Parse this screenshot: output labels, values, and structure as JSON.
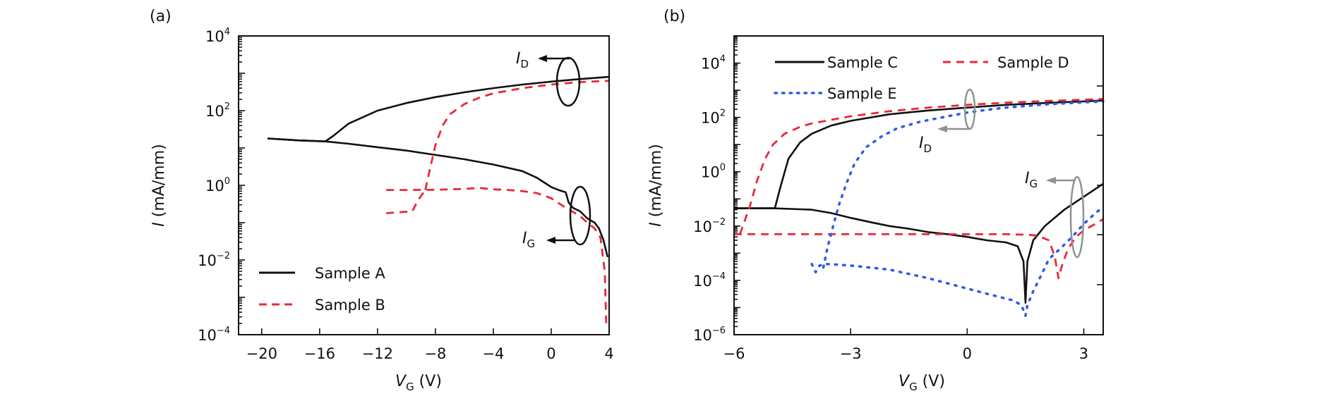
{
  "chart_data": [
    {
      "panel_label": "(a)",
      "type": "line",
      "title": "",
      "xlabel": "V_G (V)",
      "xlabel_main": "V",
      "xlabel_sub": "G",
      "xlabel_unit": " (V)",
      "ylabel": "I (mA/mm)",
      "ylabel_main": "I",
      "ylabel_unit": " (mA/mm)",
      "xlim": [
        -21.6,
        4
      ],
      "ylim": [
        0.0001,
        10000
      ],
      "yscale": "log",
      "grid": false,
      "xticks": [
        -20,
        -16,
        -12,
        -8,
        -4,
        0,
        4
      ],
      "xtick_labels": [
        "−20",
        "−16",
        "−12",
        "−8",
        "−4",
        "0",
        "4"
      ],
      "yticks": [
        4,
        2,
        0,
        -2,
        -4
      ],
      "ytick_labels": [
        "10^4",
        "10^2",
        "10^0",
        "10^−2",
        "10^−4"
      ],
      "legend_position": "bottom-left",
      "legend": [
        {
          "name": "Sample A",
          "style": "solid",
          "color": "#111111"
        },
        {
          "name": "Sample B",
          "style": "dashed",
          "color": "#e8283a"
        }
      ],
      "annotations": [
        {
          "text_main": "I",
          "text_sub": "D",
          "target": "drain current curves",
          "color": "#111111"
        },
        {
          "text_main": "I",
          "text_sub": "G",
          "target": "gate current curves",
          "color": "#111111"
        }
      ],
      "series": [
        {
          "name": "Sample A",
          "kind": "I_D",
          "style": "solid",
          "color": "#111111",
          "x": [
            -19.6,
            -17.5,
            -15.6,
            -15.0,
            -14.0,
            -12.0,
            -10.0,
            -8.0,
            -6.0,
            -4.0,
            -2.0,
            0.0,
            2.0,
            4.0
          ],
          "y": [
            18,
            16,
            15,
            22,
            45,
            100,
            160,
            230,
            310,
            400,
            500,
            600,
            700,
            800
          ]
        },
        {
          "name": "Sample A",
          "kind": "I_G",
          "style": "solid",
          "color": "#111111",
          "x": [
            -19.6,
            -17.5,
            -15.6,
            -14.0,
            -12.0,
            -10.0,
            -8.0,
            -6.0,
            -4.0,
            -2.0,
            -1.0,
            0.0,
            0.5,
            1.0,
            1.2,
            1.5,
            2.0,
            2.5,
            3.0,
            3.3,
            3.6,
            3.9
          ],
          "y": [
            18,
            16,
            15,
            13,
            10.5,
            8.5,
            6.5,
            5.0,
            3.6,
            2.4,
            1.6,
            0.9,
            0.75,
            0.65,
            0.35,
            0.25,
            0.2,
            0.13,
            0.1,
            0.07,
            0.035,
            0.012
          ]
        },
        {
          "name": "Sample B",
          "kind": "I_D",
          "style": "dashed",
          "color": "#e8283a",
          "x": [
            -8.7,
            -8.4,
            -8.0,
            -7.5,
            -7.0,
            -6.0,
            -5.0,
            -4.0,
            -2.0,
            0.0,
            2.0,
            4.0
          ],
          "y": [
            0.75,
            2.5,
            12,
            40,
            80,
            150,
            220,
            290,
            400,
            500,
            580,
            630
          ]
        },
        {
          "name": "Sample B",
          "kind": "I_G_upper",
          "style": "dashed",
          "color": "#e8283a",
          "x": [
            -11.4,
            -10.0,
            -8.0,
            -6.0,
            -5.0,
            -4.0,
            -3.0,
            -2.0,
            -1.0,
            0.0,
            1.0,
            2.0,
            2.5,
            3.0,
            3.4,
            3.7,
            3.8
          ],
          "y": [
            0.75,
            0.75,
            0.76,
            0.8,
            0.85,
            0.78,
            0.75,
            0.7,
            0.62,
            0.45,
            0.25,
            0.15,
            0.1,
            0.07,
            0.04,
            0.005,
            0.0002
          ]
        },
        {
          "name": "Sample B",
          "kind": "I_G_lower",
          "style": "dashed",
          "color": "#e8283a",
          "x": [
            -11.4,
            -10.5,
            -9.6,
            -9.2,
            -8.7
          ],
          "y": [
            0.18,
            0.19,
            0.2,
            0.4,
            0.75
          ]
        }
      ]
    },
    {
      "panel_label": "(b)",
      "type": "line",
      "title": "",
      "xlabel": "V_G (V)",
      "xlabel_main": "V",
      "xlabel_sub": "G",
      "xlabel_unit": " (V)",
      "ylabel": "I (mA/mm)",
      "ylabel_main": "I",
      "ylabel_unit": " (mA/mm)",
      "xlim": [
        -6,
        3.5
      ],
      "ylim": [
        1e-06,
        100000
      ],
      "yscale": "log",
      "grid": false,
      "xticks": [
        -6,
        -3,
        0,
        3
      ],
      "xtick_labels": [
        "−6",
        "−3",
        "0",
        "3"
      ],
      "yticks": [
        4,
        2,
        0,
        -2,
        -4,
        -6
      ],
      "ytick_labels": [
        "10^4",
        "10^2",
        "10^0",
        "10^−2",
        "10^−4",
        "10^−6"
      ],
      "legend_position": "top",
      "legend": [
        {
          "name": "Sample C",
          "style": "solid",
          "color": "#111111"
        },
        {
          "name": "Sample D",
          "style": "dashed",
          "color": "#e8283a"
        },
        {
          "name": "Sample E",
          "style": "dotted",
          "color": "#2f5bea"
        }
      ],
      "annotations": [
        {
          "text_main": "I",
          "text_sub": "D",
          "target": "drain current curves",
          "color": "#8c9396"
        },
        {
          "text_main": "I",
          "text_sub": "G",
          "target": "gate current curves",
          "color": "#8c9396"
        }
      ],
      "series": [
        {
          "name": "Sample C",
          "kind": "I_D",
          "style": "solid",
          "color": "#111111",
          "x": [
            -6.0,
            -5.5,
            -4.95,
            -4.8,
            -4.6,
            -4.3,
            -4.0,
            -3.5,
            -3.0,
            -2.0,
            -1.0,
            0.0,
            1.0,
            2.0,
            3.0,
            3.5
          ],
          "y": [
            0.045,
            0.045,
            0.045,
            0.3,
            3,
            12,
            25,
            50,
            75,
            130,
            180,
            230,
            290,
            340,
            390,
            420
          ]
        },
        {
          "name": "Sample C",
          "kind": "I_G",
          "style": "solid",
          "color": "#111111",
          "x": [
            -6.0,
            -5.0,
            -4.0,
            -3.5,
            -3.0,
            -2.5,
            -2.0,
            -1.5,
            -1.0,
            -0.5,
            0.0,
            0.5,
            1.0,
            1.3,
            1.45,
            1.5,
            1.55,
            1.7,
            2.0,
            2.5,
            3.0,
            3.5
          ],
          "y": [
            0.045,
            0.045,
            0.04,
            0.03,
            0.02,
            0.014,
            0.01,
            0.008,
            0.006,
            0.005,
            0.004,
            0.003,
            0.0025,
            0.0018,
            0.0005,
            1.5e-05,
            0.0005,
            0.003,
            0.01,
            0.04,
            0.12,
            0.36
          ]
        },
        {
          "name": "Sample D",
          "kind": "I_D",
          "style": "dashed",
          "color": "#e8283a",
          "x": [
            -5.85,
            -5.6,
            -5.4,
            -5.2,
            -5.0,
            -4.7,
            -4.3,
            -4.0,
            -3.0,
            -2.0,
            -1.0,
            0.0,
            1.0,
            2.0,
            3.0,
            3.5
          ],
          "y": [
            0.005,
            0.05,
            0.5,
            3,
            10,
            25,
            45,
            60,
            110,
            170,
            230,
            290,
            350,
            400,
            450,
            480
          ]
        },
        {
          "name": "Sample D",
          "kind": "I_G",
          "style": "dashed",
          "color": "#e8283a",
          "x": [
            -6.0,
            -5.0,
            -4.0,
            -3.0,
            -2.0,
            -1.0,
            0.0,
            1.0,
            1.5,
            1.8,
            2.1,
            2.25,
            2.35,
            2.45,
            2.6,
            2.8,
            3.0,
            3.3,
            3.5
          ],
          "y": [
            0.005,
            0.005,
            0.005,
            0.005,
            0.005,
            0.005,
            0.005,
            0.005,
            0.0048,
            0.0045,
            0.003,
            0.0008,
            0.00012,
            0.0004,
            0.0015,
            0.004,
            0.007,
            0.012,
            0.018
          ]
        },
        {
          "name": "Sample E",
          "kind": "I_D",
          "style": "dotted",
          "color": "#2f5bea",
          "x": [
            -3.7,
            -3.6,
            -3.45,
            -3.3,
            -3.1,
            -2.9,
            -2.6,
            -2.2,
            -1.8,
            -1.2,
            -0.5,
            0.0,
            0.5,
            1.0,
            2.0,
            3.0,
            3.5
          ],
          "y": [
            0.0003,
            0.0015,
            0.01,
            0.06,
            0.4,
            2,
            8,
            20,
            40,
            70,
            110,
            150,
            190,
            230,
            300,
            360,
            390
          ]
        },
        {
          "name": "Sample E",
          "kind": "I_G",
          "style": "dotted",
          "color": "#2f5bea",
          "x": [
            -4.0,
            -3.9,
            -3.8,
            -3.6,
            -3.0,
            -2.0,
            -1.0,
            0.0,
            0.8,
            1.2,
            1.4,
            1.5,
            1.55,
            1.7,
            1.9,
            2.1,
            2.4,
            2.7,
            3.0,
            3.3,
            3.5
          ],
          "y": [
            0.0004,
            0.0002,
            0.00035,
            0.0004,
            0.00035,
            0.00025,
            0.00012,
            5e-05,
            2.5e-05,
            1.8e-05,
            1.2e-05,
            5e-06,
            1.2e-05,
            4e-05,
            0.00015,
            0.0006,
            0.0015,
            0.004,
            0.012,
            0.03,
            0.05
          ]
        }
      ]
    }
  ]
}
